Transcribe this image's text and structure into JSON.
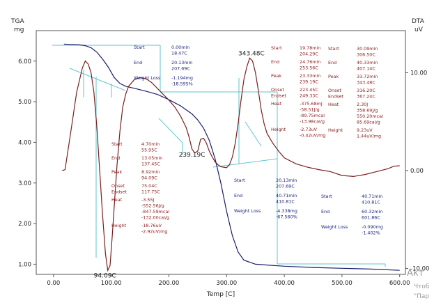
{
  "chart_data": {
    "type": "line",
    "title": "",
    "xlabel": "Temp [C]",
    "ylabel_left": "TGA",
    "ylabel_left_unit": "mg",
    "ylabel_right": "DTA",
    "ylabel_right_unit": "uV",
    "xlim": [
      -30,
      610
    ],
    "ylim_left": [
      0.75,
      6.75
    ],
    "ylim_right": [
      -10.6,
      14.3
    ],
    "x_ticks": [
      0,
      100,
      200,
      300,
      400,
      500,
      600
    ],
    "x_tick_labels": [
      "0.00",
      "100.00",
      "200.00",
      "300.00",
      "400.00",
      "500.00",
      "600.00"
    ],
    "y_left_ticks": [
      1,
      2,
      3,
      4,
      5,
      6
    ],
    "y_left_tick_labels": [
      "1.00",
      "2.00",
      "3.00",
      "4.00",
      "5.00",
      "6.00"
    ],
    "y_right_ticks": [
      -10,
      0,
      10
    ],
    "y_right_tick_labels": [
      "-10.00",
      "0.00",
      "10.00"
    ],
    "grid": false,
    "colors": {
      "tga": "#1c1c6e",
      "dta": "#7a1f1f",
      "construction": "#5ec6cf",
      "text_red": "#8b1a1a",
      "text_blue": "#1a237e"
    },
    "series": [
      {
        "axis": "left",
        "x": [
          18,
          30,
          45,
          55,
          65,
          75,
          85,
          95,
          105,
          115,
          125,
          140,
          160,
          180,
          200,
          220,
          240,
          250,
          260,
          270,
          280,
          290,
          300,
          310,
          320,
          330,
          350,
          370,
          400,
          450,
          500,
          550,
          600
        ],
        "y": [
          6.42,
          6.41,
          6.4,
          6.38,
          6.33,
          6.22,
          6.05,
          5.85,
          5.6,
          5.45,
          5.38,
          5.33,
          5.26,
          5.18,
          5.05,
          4.9,
          4.7,
          4.55,
          4.35,
          4.05,
          3.6,
          3.0,
          2.3,
          1.7,
          1.3,
          1.1,
          1.0,
          0.98,
          0.95,
          0.92,
          0.9,
          0.88,
          0.85
        ]
      },
      {
        "axis": "right",
        "x": [
          15,
          20,
          30,
          40,
          50,
          55,
          60,
          65,
          70,
          75,
          80,
          85,
          90,
          94,
          98,
          102,
          106,
          110,
          115,
          120,
          125,
          130,
          140,
          150,
          160,
          170,
          180,
          190,
          200,
          210,
          220,
          230,
          235,
          240,
          245,
          250,
          255,
          260,
          265,
          270,
          275,
          280,
          285,
          290,
          300,
          305,
          310,
          315,
          320,
          325,
          330,
          335,
          340,
          345,
          350,
          355,
          360,
          365,
          370,
          380,
          390,
          400,
          420,
          440,
          460,
          480,
          500,
          520,
          540,
          560,
          580,
          590,
          600
        ],
        "y": [
          0.0,
          0.1,
          4.0,
          8.0,
          10.5,
          11.2,
          10.9,
          10.0,
          8.0,
          4.5,
          0.0,
          -4.5,
          -8.5,
          -10.2,
          -9.7,
          -6.5,
          -3.0,
          0.5,
          4.0,
          6.5,
          7.8,
          8.6,
          9.3,
          9.5,
          9.4,
          9.0,
          8.4,
          7.8,
          7.2,
          6.5,
          5.6,
          4.4,
          3.4,
          2.2,
          1.8,
          2.0,
          3.2,
          3.3,
          2.8,
          2.0,
          1.4,
          0.9,
          0.6,
          0.4,
          0.3,
          0.6,
          1.4,
          2.8,
          4.8,
          7.2,
          9.3,
          10.6,
          11.5,
          11.2,
          10.0,
          8.2,
          6.2,
          4.8,
          3.8,
          2.8,
          2.0,
          1.3,
          0.7,
          0.35,
          0.1,
          -0.1,
          -0.5,
          -0.6,
          -0.4,
          -0.1,
          0.2,
          0.45,
          0.5
        ]
      }
    ],
    "peak_labels": [
      {
        "text": "94.09C",
        "x": 94,
        "y_axis": "right",
        "y": -10.2
      },
      {
        "text": "239.19C",
        "x": 240,
        "y_axis": "right",
        "y": 2.2
      },
      {
        "text": "343.48C",
        "x": 343,
        "y_axis": "right",
        "y": 11.5
      }
    ],
    "annotations": [
      {
        "color": "blue",
        "lines": [
          {
            "label": "Start",
            "value": "0.00min"
          },
          {
            "label": "",
            "value": "18.47C"
          },
          {
            "label": "End",
            "value": "20.13min"
          },
          {
            "label": "",
            "value": "207.69C"
          },
          {
            "label": "Weight Loss",
            "value": "-1.194mg"
          },
          {
            "label": "",
            "value": "-18.595%"
          }
        ]
      },
      {
        "color": "red",
        "lines": [
          {
            "label": "Start",
            "value": "19.78min"
          },
          {
            "label": "",
            "value": "204.29C"
          },
          {
            "label": "End",
            "value": "24.76min"
          },
          {
            "label": "",
            "value": "253.56C"
          },
          {
            "label": "Peak",
            "value": "23.33min"
          },
          {
            "label": "",
            "value": "239.19C"
          },
          {
            "label": "Onset",
            "value": "223.45C"
          },
          {
            "label": "Endset",
            "value": "249.33C"
          },
          {
            "label": "Heat",
            "value": "-375.68mJ"
          },
          {
            "label": "",
            "value": "-58.51J/g"
          },
          {
            "label": "",
            "value": "-89.75mcal"
          },
          {
            "label": "",
            "value": "-13.98cal/g"
          },
          {
            "label": "Height",
            "value": "-2.73uV"
          },
          {
            "label": "",
            "value": "-0.42uV/mg"
          }
        ]
      },
      {
        "color": "red",
        "lines": [
          {
            "label": "Start",
            "value": "30.09min"
          },
          {
            "label": "",
            "value": "306.50C"
          },
          {
            "label": "End",
            "value": "40.33min"
          },
          {
            "label": "",
            "value": "407.14C"
          },
          {
            "label": "Peak",
            "value": "33.72min"
          },
          {
            "label": "",
            "value": "343.48C"
          },
          {
            "label": "Onset",
            "value": "316.20C"
          },
          {
            "label": "Endset",
            "value": "367.24C"
          },
          {
            "label": "Heat",
            "value": "2.30J"
          },
          {
            "label": "",
            "value": "358.69J/g"
          },
          {
            "label": "",
            "value": "550.20mcal"
          },
          {
            "label": "",
            "value": "85.69cal/g"
          },
          {
            "label": "Height",
            "value": "9.23uV"
          },
          {
            "label": "",
            "value": "1.44uV/mg"
          }
        ]
      },
      {
        "color": "red",
        "lines": [
          {
            "label": "Start",
            "value": "4.70min"
          },
          {
            "label": "",
            "value": "55.95C"
          },
          {
            "label": "End",
            "value": "13.05min"
          },
          {
            "label": "",
            "value": "137.45C"
          },
          {
            "label": "Peak",
            "value": "8.92min"
          },
          {
            "label": "",
            "value": "94.09C"
          },
          {
            "label": "Onset",
            "value": "75.04C"
          },
          {
            "label": "Endset",
            "value": "117.75C"
          },
          {
            "label": "Heat",
            "value": "-3.55J"
          },
          {
            "label": "",
            "value": "-552.56J/g"
          },
          {
            "label": "",
            "value": "-847.59mcal"
          },
          {
            "label": "",
            "value": "-132.00cal/g"
          },
          {
            "label": "Height",
            "value": "-18.76uV"
          },
          {
            "label": "",
            "value": "-2.92uV/mg"
          }
        ]
      },
      {
        "color": "blue",
        "lines": [
          {
            "label": "Start",
            "value": "20.13min"
          },
          {
            "label": "",
            "value": "207.69C"
          },
          {
            "label": "End",
            "value": "40.71min"
          },
          {
            "label": "",
            "value": "410.81C"
          },
          {
            "label": "Weight Loss",
            "value": "-4.338mg"
          },
          {
            "label": "",
            "value": "-67.560%"
          }
        ]
      },
      {
        "color": "blue",
        "lines": [
          {
            "label": "Start",
            "value": "40.71min"
          },
          {
            "label": "",
            "value": "410.81C"
          },
          {
            "label": "End",
            "value": "60.32min"
          },
          {
            "label": "",
            "value": "601.86C"
          },
          {
            "label": "Weight Loss",
            "value": "-0.090mg"
          },
          {
            "label": "",
            "value": "-1.402%"
          }
        ]
      }
    ]
  },
  "watermark": {
    "line1": "Акт",
    "line2": "Чтоб",
    "line3": "\"Пар"
  }
}
